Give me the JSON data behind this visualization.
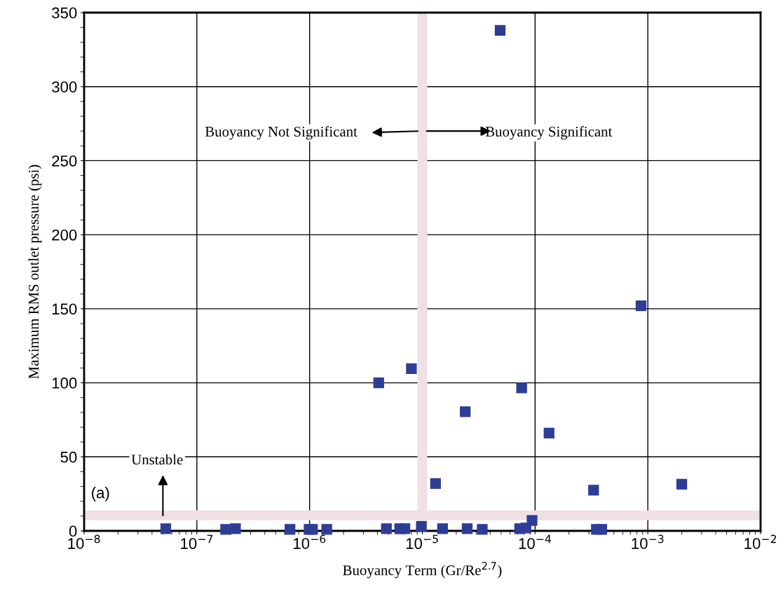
{
  "chart_data": {
    "type": "scatter",
    "xlabel": "Buoyancy Term (Gr/Re$^{2.7}$)",
    "ylabel": "Maximum RMS outlet pressure (psi)",
    "series": [
      {
        "color": "#2e3d96",
        "x": [
          5.3e-08,
          1.8e-07,
          2.2e-07,
          6.7e-07,
          9.9e-07,
          1.06e-06,
          1.42e-06,
          4.1e-06,
          4.8e-06,
          6.3e-06,
          7e-06,
          8e-06,
          9.8e-06,
          1.31e-05,
          1.51e-05,
          2.4e-05,
          2.5e-05,
          3.4e-05,
          4.9e-05,
          7.3e-05,
          7.6e-05,
          8.3e-05,
          9.4e-05,
          0.000133,
          0.00033,
          0.00035,
          0.00039,
          0.00087,
          0.002
        ],
        "values": [
          1.5,
          1,
          1.5,
          1,
          1,
          1,
          1,
          100,
          1.5,
          1.5,
          1.5,
          109.5,
          3,
          32,
          1.5,
          80.5,
          1.5,
          1,
          338,
          1.5,
          96.5,
          2,
          7,
          66,
          27.5,
          1,
          1,
          152,
          31.5
        ]
      }
    ],
    "log": "x",
    "xlim": [
      1e-08,
      0.01
    ],
    "xticks": [
      {
        "value": 1e-08,
        "label": "10$^{−8}$"
      },
      {
        "value": 1e-07,
        "label": "10$^{−7}$"
      },
      {
        "value": 1e-06,
        "label": "10$^{−6}$"
      },
      {
        "value": 1e-05,
        "label": "10$^{−5}$"
      },
      {
        "value": 0.0001,
        "label": "10$^{−4}$"
      },
      {
        "value": 0.001,
        "label": "10$^{−3}$"
      },
      {
        "value": 0.01,
        "label": "10$^{−2}$"
      }
    ],
    "ylim": [
      0,
      350
    ],
    "yticks": [
      0,
      50,
      100,
      150,
      200,
      250,
      300,
      350
    ],
    "grid": true,
    "marker": "square",
    "ref_lines": [
      {
        "axis": "y",
        "value": 10.5,
        "color": "#f0e0e3"
      },
      {
        "axis": "x",
        "value": 1e-05,
        "color": "#f0e0e3"
      }
    ],
    "annotations": [
      "Buoyancy Not Significant",
      "Buoyancy Significant",
      "Unstable",
      "(a)"
    ]
  }
}
